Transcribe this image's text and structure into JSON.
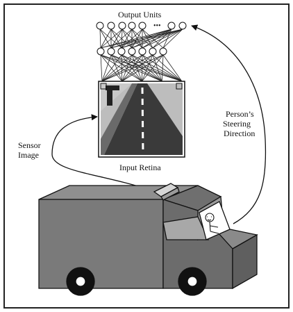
{
  "labels": {
    "output_units": "Output Units",
    "ellipsis": "•••",
    "input_retina": "Input Retina",
    "sensor_image_1": "Sensor",
    "sensor_image_2": "Image",
    "persons_steering_1": "Person’s",
    "persons_steering_2": "Steering",
    "persons_steering_3": "Direction"
  },
  "colors": {
    "frame": "#2a2a2a",
    "truck_body": "#7a7a7a",
    "truck_side": "#5f5f5f",
    "truck_roof": "#8f8f8f",
    "retina_sky": "#bdbdbd",
    "road": "#3a3a3a",
    "ground": "#8a8a8a"
  }
}
